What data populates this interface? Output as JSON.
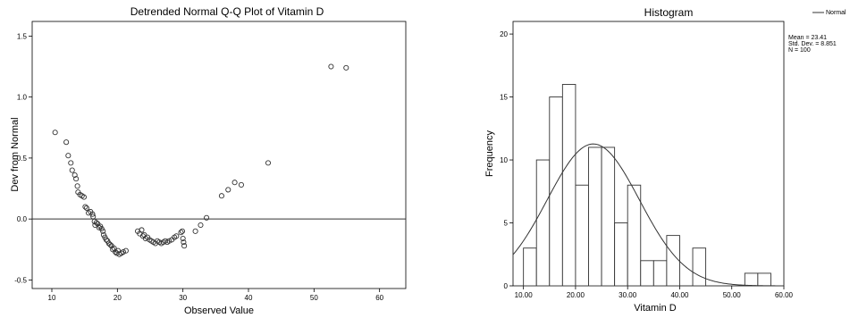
{
  "chart_data": [
    {
      "type": "scatter",
      "title": "Detrended Normal Q-Q Plot of Vitamin D",
      "xlabel": "Observed Value",
      "ylabel": "Dev from Normal",
      "xlim": [
        7,
        64
      ],
      "ylim": [
        -0.57,
        1.62
      ],
      "x_ticks": [
        "10",
        "20",
        "30",
        "40",
        "50",
        "60"
      ],
      "y_ticks": [
        "-0.5",
        "0.0",
        "0.5",
        "1.0",
        "1.5"
      ],
      "reference_line": 0,
      "points": [
        [
          10.5,
          0.71
        ],
        [
          12.2,
          0.63
        ],
        [
          12.5,
          0.52
        ],
        [
          12.9,
          0.46
        ],
        [
          13.1,
          0.4
        ],
        [
          13.5,
          0.36
        ],
        [
          13.7,
          0.33
        ],
        [
          13.9,
          0.27
        ],
        [
          14.0,
          0.22
        ],
        [
          14.3,
          0.2
        ],
        [
          14.6,
          0.19
        ],
        [
          14.9,
          0.18
        ],
        [
          15.1,
          0.1
        ],
        [
          15.3,
          0.09
        ],
        [
          15.6,
          0.05
        ],
        [
          15.9,
          0.06
        ],
        [
          16.2,
          0.04
        ],
        [
          16.3,
          0.02
        ],
        [
          16.5,
          -0.02
        ],
        [
          16.6,
          -0.05
        ],
        [
          16.8,
          -0.03
        ],
        [
          17.0,
          -0.04
        ],
        [
          17.2,
          -0.07
        ],
        [
          17.4,
          -0.06
        ],
        [
          17.6,
          -0.08
        ],
        [
          17.8,
          -0.1
        ],
        [
          17.9,
          -0.13
        ],
        [
          18.1,
          -0.15
        ],
        [
          18.3,
          -0.17
        ],
        [
          18.5,
          -0.18
        ],
        [
          18.7,
          -0.2
        ],
        [
          18.9,
          -0.21
        ],
        [
          19.1,
          -0.22
        ],
        [
          19.3,
          -0.25
        ],
        [
          19.5,
          -0.24
        ],
        [
          19.7,
          -0.27
        ],
        [
          19.9,
          -0.28
        ],
        [
          20.1,
          -0.26
        ],
        [
          20.3,
          -0.29
        ],
        [
          20.6,
          -0.28
        ],
        [
          20.9,
          -0.27
        ],
        [
          21.3,
          -0.26
        ],
        [
          23.1,
          -0.1
        ],
        [
          23.4,
          -0.12
        ],
        [
          23.7,
          -0.09
        ],
        [
          23.9,
          -0.14
        ],
        [
          24.1,
          -0.13
        ],
        [
          24.3,
          -0.16
        ],
        [
          24.6,
          -0.15
        ],
        [
          24.9,
          -0.17
        ],
        [
          25.2,
          -0.18
        ],
        [
          25.5,
          -0.19
        ],
        [
          25.8,
          -0.2
        ],
        [
          26.1,
          -0.18
        ],
        [
          26.4,
          -0.19
        ],
        [
          26.7,
          -0.2
        ],
        [
          27.0,
          -0.19
        ],
        [
          27.3,
          -0.18
        ],
        [
          27.6,
          -0.19
        ],
        [
          27.9,
          -0.18
        ],
        [
          28.3,
          -0.17
        ],
        [
          28.7,
          -0.15
        ],
        [
          29.0,
          -0.14
        ],
        [
          29.7,
          -0.11
        ],
        [
          29.9,
          -0.1
        ],
        [
          30.0,
          -0.16
        ],
        [
          30.1,
          -0.19
        ],
        [
          30.2,
          -0.22
        ],
        [
          31.9,
          -0.1
        ],
        [
          32.7,
          -0.05
        ],
        [
          33.6,
          0.01
        ],
        [
          35.9,
          0.19
        ],
        [
          36.9,
          0.24
        ],
        [
          37.9,
          0.3
        ],
        [
          38.9,
          0.28
        ],
        [
          43.0,
          0.46
        ],
        [
          52.6,
          1.25
        ],
        [
          54.9,
          1.24
        ]
      ]
    },
    {
      "type": "bar",
      "title": "Histogram",
      "xlabel": "Vitamin D",
      "ylabel": "Frequency",
      "xlim": [
        8,
        60
      ],
      "ylim": [
        0,
        21
      ],
      "x_ticks": [
        "10.00",
        "20.00",
        "30.00",
        "40.00",
        "50.00",
        "60.00"
      ],
      "y_ticks": [
        "0",
        "5",
        "10",
        "15",
        "20"
      ],
      "bin_width": 2.5,
      "bins": [
        [
          10.0,
          3
        ],
        [
          12.5,
          10
        ],
        [
          15.0,
          15
        ],
        [
          17.5,
          16
        ],
        [
          20.0,
          8
        ],
        [
          22.5,
          11
        ],
        [
          25.0,
          11
        ],
        [
          27.5,
          5
        ],
        [
          30.0,
          8
        ],
        [
          32.5,
          2
        ],
        [
          35.0,
          2
        ],
        [
          37.5,
          4
        ],
        [
          42.5,
          3
        ],
        [
          52.5,
          1
        ],
        [
          55.0,
          1
        ]
      ],
      "normal_curve": {
        "mean": 23.41,
        "sd": 8.851,
        "n": 100
      },
      "legend": {
        "entry": "Normal",
        "placement": "top-right"
      },
      "stats": [
        "Mean = 23.41",
        "Std. Dev. = 8.851",
        "N = 100"
      ]
    }
  ]
}
